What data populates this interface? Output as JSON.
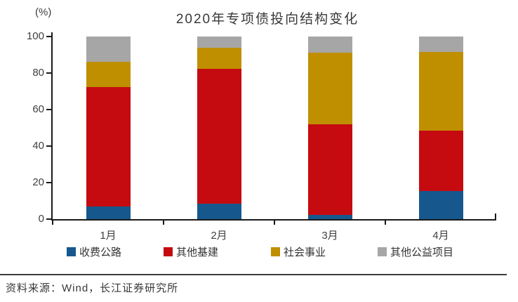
{
  "header": {
    "unit_label": "(%)",
    "title": "2020年专项债投向结构变化"
  },
  "chart_data": {
    "type": "bar",
    "stacked": true,
    "title": "2020年专项债投向结构变化",
    "unit": "%",
    "categories": [
      "1月",
      "2月",
      "3月",
      "4月"
    ],
    "series": [
      {
        "name": "收费公路",
        "color": "#16588E",
        "values": [
          7,
          8.5,
          2.5,
          15.5
        ]
      },
      {
        "name": "其他基建",
        "color": "#C50B10",
        "values": [
          65.5,
          74,
          49.5,
          33
        ]
      },
      {
        "name": "社会事业",
        "color": "#BF8F00",
        "values": [
          13.5,
          11.5,
          39,
          43
        ]
      },
      {
        "name": "其他公益项目",
        "color": "#A6A6A6",
        "values": [
          14,
          6,
          9,
          8.5
        ]
      }
    ],
    "ylim": [
      0,
      100
    ],
    "yticks": [
      0,
      20,
      40,
      60,
      80,
      100
    ],
    "legend_position": "bottom",
    "grid": false,
    "axis_color": "#1a1a1a"
  },
  "footer": {
    "source_text": "资料来源：Wind，长江证券研究所"
  }
}
